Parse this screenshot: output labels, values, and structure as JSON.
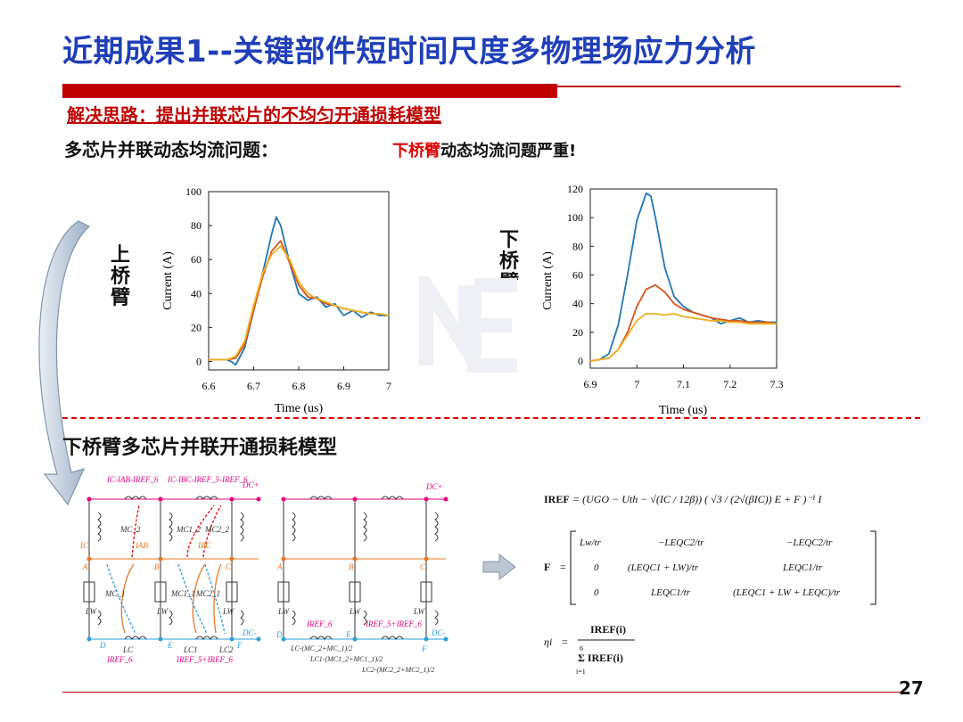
{
  "title": "近期成果1--关键部件短时间尺度多物理场应力分析",
  "approach": "解决思路：提出并联芯片的不均匀开通损耗模型",
  "problem": "多芯片并联动态均流问题：",
  "severe": {
    "highlight": "下桥臂",
    "rest": "动态均流问题严重!"
  },
  "upper_label": "上桥臂",
  "lower_label": "下桥臂",
  "model_heading": "下桥臂多芯片并联开通损耗模型",
  "page_number": "27",
  "colors": {
    "title": "#1f3fb8",
    "accent_red": "#c00000",
    "series_blue": "#1f77b4",
    "series_orange": "#d95319",
    "series_yellow": "#edb120",
    "pink": "#e6007e",
    "dashed_blue": "#2aa0d8"
  },
  "chart_data": [
    {
      "type": "line",
      "xlabel": "Time (us)",
      "ylabel": "Current (A)",
      "xlim": [
        6.6,
        7.0
      ],
      "ylim": [
        -5,
        100
      ],
      "xticks": [
        "6.6",
        "6.7",
        "6.8",
        "6.9",
        "7"
      ],
      "yticks": [
        "0",
        "20",
        "40",
        "60",
        "80",
        "100"
      ],
      "series": [
        {
          "color": "#1f77b4",
          "x": [
            6.6,
            6.64,
            6.65,
            6.66,
            6.68,
            6.7,
            6.72,
            6.74,
            6.75,
            6.76,
            6.78,
            6.8,
            6.82,
            6.84,
            6.86,
            6.88,
            6.9,
            6.92,
            6.94,
            6.96,
            6.98,
            7.0
          ],
          "y": [
            1,
            1,
            0,
            -2,
            8,
            30,
            52,
            75,
            85,
            80,
            58,
            40,
            36,
            38,
            32,
            34,
            27,
            30,
            26,
            29,
            27,
            27
          ]
        },
        {
          "color": "#d95319",
          "x": [
            6.6,
            6.64,
            6.66,
            6.68,
            6.7,
            6.72,
            6.74,
            6.76,
            6.78,
            6.8,
            6.82,
            6.84,
            6.86,
            6.88,
            6.9,
            6.92,
            6.94,
            6.96,
            6.98,
            7.0
          ],
          "y": [
            1,
            1,
            2,
            10,
            30,
            50,
            65,
            71,
            58,
            45,
            38,
            37,
            34,
            33,
            31,
            30,
            29,
            28,
            28,
            27
          ]
        },
        {
          "color": "#edb120",
          "x": [
            6.6,
            6.64,
            6.66,
            6.68,
            6.7,
            6.72,
            6.74,
            6.76,
            6.78,
            6.8,
            6.82,
            6.84,
            6.86,
            6.88,
            6.9,
            6.92,
            6.94,
            6.96,
            6.98,
            7.0
          ],
          "y": [
            1,
            1,
            3,
            12,
            33,
            52,
            63,
            68,
            60,
            47,
            40,
            37,
            35,
            33,
            31,
            30,
            29,
            28,
            28,
            27
          ]
        }
      ]
    },
    {
      "type": "line",
      "xlabel": "Time (us)",
      "ylabel": "Current (A)",
      "xlim": [
        6.9,
        7.3
      ],
      "ylim": [
        -5,
        120
      ],
      "xticks": [
        "6.9",
        "7",
        "7.1",
        "7.2",
        "7.3"
      ],
      "yticks": [
        "0",
        "20",
        "40",
        "60",
        "80",
        "100",
        "120"
      ],
      "series": [
        {
          "color": "#1f77b4",
          "x": [
            6.9,
            6.92,
            6.94,
            6.96,
            6.98,
            7.0,
            7.02,
            7.03,
            7.04,
            7.06,
            7.08,
            7.1,
            7.12,
            7.14,
            7.16,
            7.18,
            7.2,
            7.22,
            7.24,
            7.26,
            7.28,
            7.3
          ],
          "y": [
            0,
            1,
            5,
            25,
            60,
            98,
            117,
            115,
            100,
            65,
            45,
            38,
            34,
            32,
            30,
            26,
            28,
            30,
            27,
            28,
            27,
            27
          ]
        },
        {
          "color": "#d95319",
          "x": [
            6.9,
            6.94,
            6.96,
            6.98,
            7.0,
            7.02,
            7.04,
            7.06,
            7.08,
            7.1,
            7.12,
            7.14,
            7.16,
            7.18,
            7.2,
            7.22,
            7.24,
            7.26,
            7.28,
            7.3
          ],
          "y": [
            0,
            2,
            8,
            20,
            38,
            50,
            53,
            48,
            40,
            36,
            34,
            32,
            30,
            29,
            28,
            28,
            27,
            27,
            27,
            26
          ]
        },
        {
          "color": "#edb120",
          "x": [
            6.9,
            6.94,
            6.96,
            6.98,
            7.0,
            7.02,
            7.04,
            7.06,
            7.08,
            7.1,
            7.12,
            7.14,
            7.16,
            7.18,
            7.2,
            7.22,
            7.24,
            7.26,
            7.28,
            7.3
          ],
          "y": [
            0,
            2,
            8,
            18,
            28,
            33,
            33,
            32,
            33,
            31,
            30,
            29,
            28,
            28,
            27,
            27,
            26,
            26,
            26,
            26
          ]
        }
      ]
    }
  ],
  "circuit": {
    "dc_plus": "DC+",
    "dc_minus": "DC-",
    "top_labels": [
      "IC-IAB-IREF_6",
      "IC-IBC-IREF_5-IREF_6"
    ],
    "nodes_mid": [
      "A",
      "B",
      "C"
    ],
    "nodes_bottom": [
      "D",
      "E",
      "F"
    ],
    "currents": [
      "IC",
      "IAB",
      "IBC"
    ],
    "inductors_bottom": [
      "LC",
      "LC1",
      "LC2"
    ],
    "lw": "LW",
    "bottom_currents": [
      "IREF_6",
      "IREF_5+IREF_6"
    ],
    "mutual": [
      "MC_2",
      "MC1_2",
      "MC2_2",
      "MC_1",
      "MC1_1",
      "MC2_1"
    ],
    "eq_labels": [
      "LC-(MC_2+MC_1)/2",
      "LC1-(MC1_2+MC1_1)/2",
      "LC2-(MC2_2+MC2_1)/2"
    ]
  },
  "equations": {
    "iref_lhs": "IREF",
    "iref_rhs": "= (UGO − Uth − √(IC / 12β)) ( √3 / (2√(βIC)) E + F )⁻¹ I",
    "f_lhs": "F",
    "f_matrix": [
      [
        "Lw/tr",
        "−LEQC2/tr",
        "−LEQC2/tr"
      ],
      [
        "0",
        "(LEQC1 + LW)/tr",
        "LEQC1/tr"
      ],
      [
        "0",
        "LEQC1/tr",
        "(LEQC1 + LW + LEQC)/tr"
      ]
    ],
    "eta_lhs": "ηi",
    "eta_num": "IREF(i)",
    "eta_den": "Σ IREF(i)",
    "eta_sum_top": "6",
    "eta_sum_bottom": "i=1"
  }
}
